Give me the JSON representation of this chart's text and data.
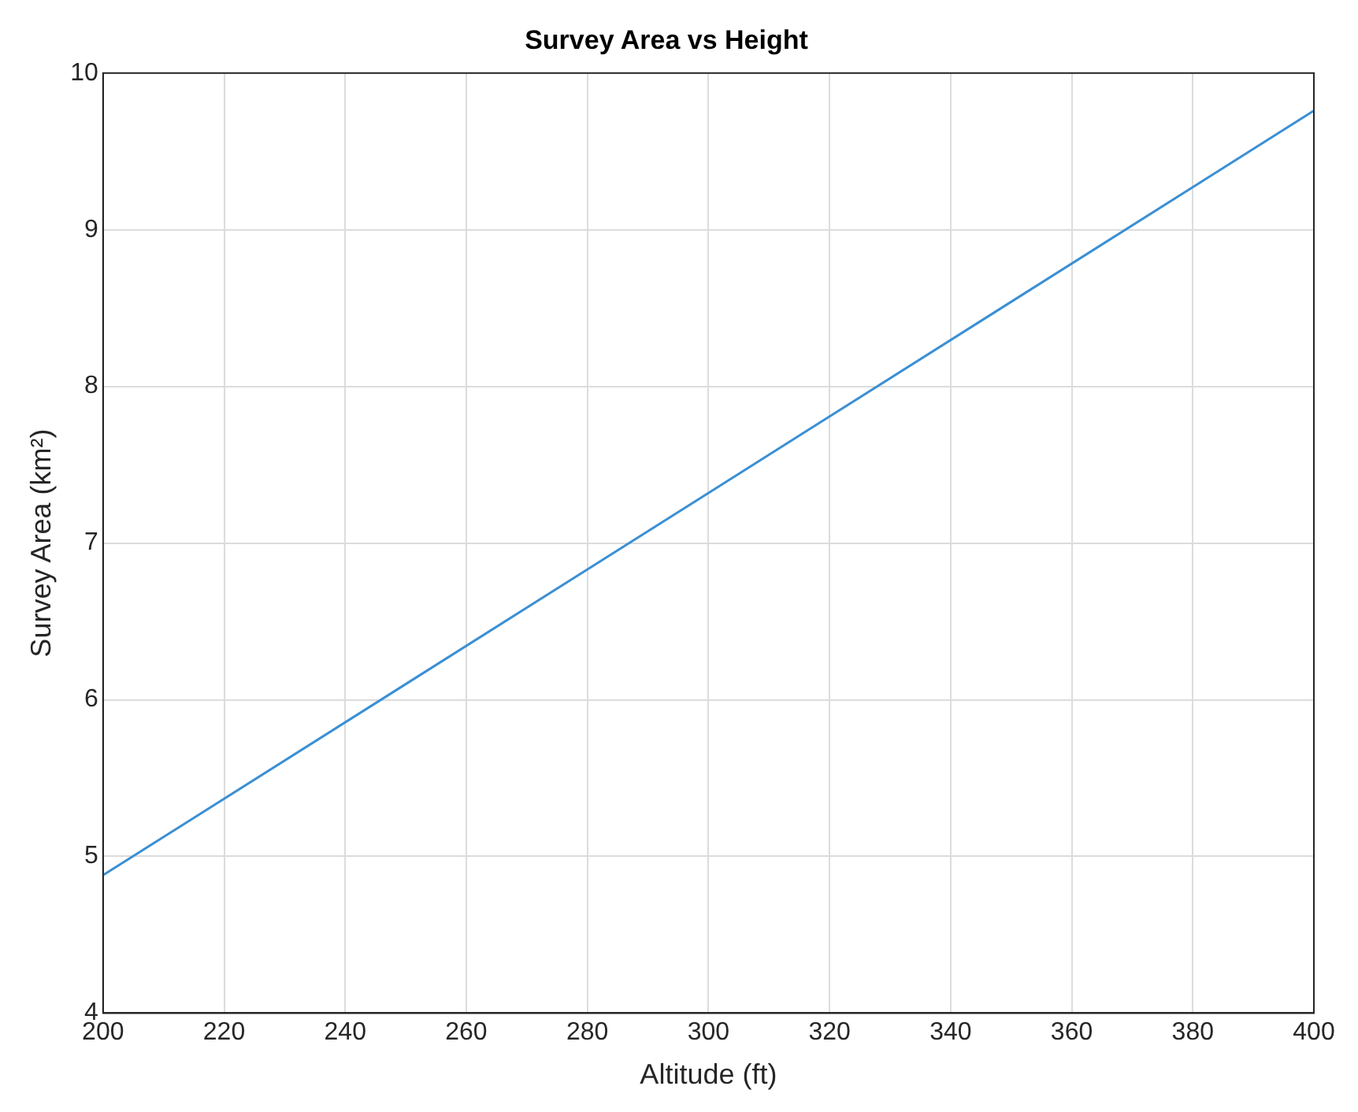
{
  "chart_data": {
    "type": "line",
    "title": "Survey Area vs Height",
    "xlabel": "Altitude (ft)",
    "ylabel": "Survey Area (km²)",
    "x": [
      200,
      300,
      400
    ],
    "series": [
      {
        "color": "#3a8fd4",
        "values": [
          4.88,
          7.32,
          9.76
        ]
      }
    ],
    "xlim": [
      200,
      400
    ],
    "xticks": [
      200,
      220,
      240,
      260,
      280,
      300,
      320,
      340,
      360,
      380,
      400
    ],
    "ylim": [
      4,
      10
    ],
    "yticks": [
      4,
      5,
      6,
      7,
      8,
      9,
      10
    ],
    "grid": true,
    "legend": false,
    "marker": "none",
    "line_style": "solid"
  }
}
